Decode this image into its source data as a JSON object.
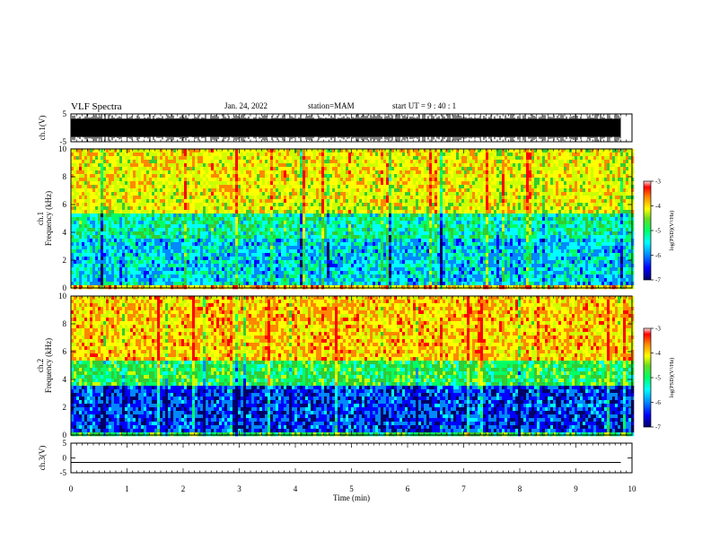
{
  "header": {
    "title": "VLF Spectra",
    "date": "Jan. 24, 2022",
    "station": "station=MAM",
    "start": "start  UT =   9 : 40 : 1"
  },
  "colors": {
    "scale": [
      "#000066",
      "#0000ff",
      "#0088ff",
      "#00ffff",
      "#00ff66",
      "#33cc33",
      "#ccff00",
      "#ffff00",
      "#ff8800",
      "#ff0000",
      "#ffffff"
    ]
  },
  "chart_data": [
    {
      "type": "line",
      "panel": "ch1-waveform",
      "ylabel": "ch.1(V)",
      "ylim": [
        -5,
        5
      ],
      "yticks": [
        "5",
        "-5"
      ],
      "xlim": [
        0,
        10
      ],
      "description_of_signal": "dense impulsive waveform spanning nearly full ±5 V range"
    },
    {
      "type": "heatmap",
      "panel": "ch1-spectrogram",
      "ylabel": "ch.1\nFrequency  (kHz)",
      "ylim": [
        0,
        10
      ],
      "yticks": [
        "0",
        "2",
        "4",
        "6",
        "8",
        "10"
      ],
      "xlim": [
        0,
        10
      ],
      "colorbar": {
        "label": "log(PSD)(V²/Hz)",
        "range": [
          -7,
          -3
        ],
        "ticks": [
          "-3",
          "-4",
          "-5",
          "-6",
          "-7"
        ]
      }
    },
    {
      "type": "heatmap",
      "panel": "ch2-spectrogram",
      "ylabel": "ch.2\nFrequency  (kHz)",
      "ylim": [
        0,
        10
      ],
      "yticks": [
        "0",
        "2",
        "4",
        "6",
        "8",
        "10"
      ],
      "xlim": [
        0,
        10
      ],
      "colorbar": {
        "label": "log(PSD)(V²/Hz)",
        "range": [
          -7,
          -3
        ],
        "ticks": [
          "-3",
          "-4",
          "-5",
          "-6",
          "-7"
        ]
      }
    },
    {
      "type": "line",
      "panel": "ch3-waveform",
      "ylabel": "ch.3(V)",
      "ylim": [
        -5,
        5
      ],
      "yticks": [
        "5",
        "0",
        "-5"
      ],
      "xlim": [
        0,
        10
      ],
      "x": [
        0,
        9.8
      ],
      "y": [
        -1.5,
        -1.5
      ]
    }
  ],
  "xaxis": {
    "label": "Time  (min)",
    "ticks": [
      "0",
      "1",
      "2",
      "3",
      "4",
      "5",
      "6",
      "7",
      "8",
      "9",
      "10"
    ]
  }
}
